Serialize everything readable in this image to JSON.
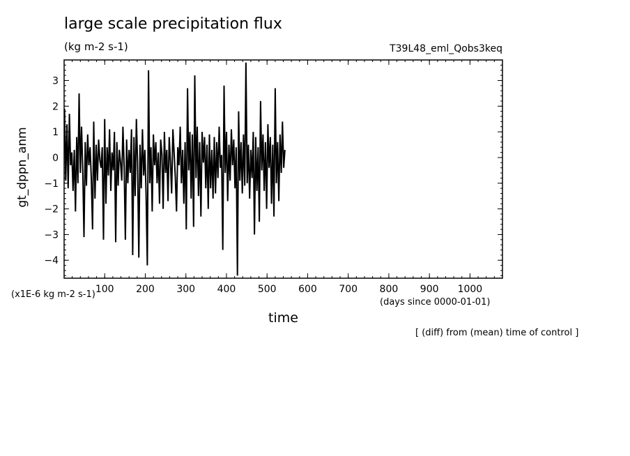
{
  "chart_data": {
    "type": "line",
    "title": "large scale precipitation flux",
    "units": "(kg m-2 s-1)",
    "run_name": "T39L48_eml_Qobs3keq",
    "ylabel": "gt_dppn_anm",
    "y_scale_note": "(x1E-6 kg m-2 s-1)",
    "xlabel": "time",
    "x_unit_note": "(days since 0000-01-01)",
    "footnote": "[ (diff) from (mean) time of control ]",
    "xlim": [
      0,
      1080
    ],
    "ylim": [
      -4.7,
      3.8
    ],
    "x_ticks": [
      100,
      200,
      300,
      400,
      500,
      600,
      700,
      800,
      900,
      1000
    ],
    "y_ticks": [
      -4,
      -3,
      -2,
      -1,
      0,
      1,
      2,
      3
    ],
    "grid": false,
    "series": [
      {
        "x_start": 1,
        "x_step": 3,
        "values": [
          1.9,
          -0.9,
          1.3,
          -1.2,
          1.7,
          -0.3,
          0.2,
          -1.3,
          0.3,
          -2.1,
          0.8,
          -1.0,
          2.5,
          -0.6,
          1.2,
          -0.5,
          -3.1,
          0.6,
          -1.1,
          0.9,
          -0.3,
          0.4,
          -0.8,
          -2.8,
          1.4,
          -1.6,
          0.5,
          -0.9,
          0.7,
          -0.1,
          -0.4,
          0.4,
          -3.2,
          1.5,
          -1.8,
          0.4,
          -0.7,
          1.1,
          -1.3,
          0.2,
          -0.5,
          1.0,
          -3.3,
          0.6,
          -1.1,
          0.3,
          -0.2,
          -0.9,
          1.2,
          -0.4,
          -3.2,
          0.7,
          -1.0,
          0.3,
          -0.6,
          1.1,
          -3.8,
          0.8,
          -1.5,
          1.5,
          -0.2,
          -3.9,
          0.5,
          -1.2,
          1.1,
          -0.7,
          0.3,
          -1.4,
          -4.2,
          3.4,
          -1.0,
          0.4,
          -2.1,
          0.9,
          -0.3,
          0.6,
          -1.0,
          0.2,
          -1.8,
          0.7,
          0.1,
          -2.0,
          1.0,
          -0.6,
          0.3,
          -1.7,
          0.8,
          -0.2,
          -1.4,
          1.1,
          0.2,
          -0.8,
          -2.1,
          0.4,
          -0.3,
          1.2,
          -1.0,
          0.3,
          -1.8,
          0.6,
          -2.8,
          2.7,
          -0.5,
          1.0,
          -1.6,
          0.9,
          -2.7,
          3.2,
          -0.8,
          1.2,
          -1.5,
          0.6,
          -2.3,
          1.0,
          -0.2,
          0.8,
          -1.2,
          0.5,
          -2.0,
          0.9,
          -1.2,
          0.3,
          -1.6,
          0.8,
          -1.4,
          0.6,
          -0.8,
          1.2,
          -0.4,
          0.1,
          -3.6,
          2.8,
          -0.6,
          1.0,
          -1.7,
          0.5,
          -0.9,
          1.1,
          -0.3,
          0.7,
          -1.2,
          0.4,
          -4.6,
          1.8,
          -0.9,
          0.6,
          -1.4,
          0.9,
          -1.1,
          3.7,
          -1.0,
          0.5,
          -1.6,
          0.3,
          -0.8,
          1.0,
          -3.0,
          0.8,
          -1.3,
          0.4,
          -2.5,
          2.2,
          -0.5,
          0.9,
          -1.3,
          0.6,
          -2.0,
          1.3,
          -0.4,
          0.8,
          -1.8,
          0.5,
          -2.3,
          2.7,
          -1.0,
          0.6,
          -1.7,
          0.9,
          -0.6,
          1.4,
          -0.4,
          0.3
        ]
      }
    ]
  }
}
